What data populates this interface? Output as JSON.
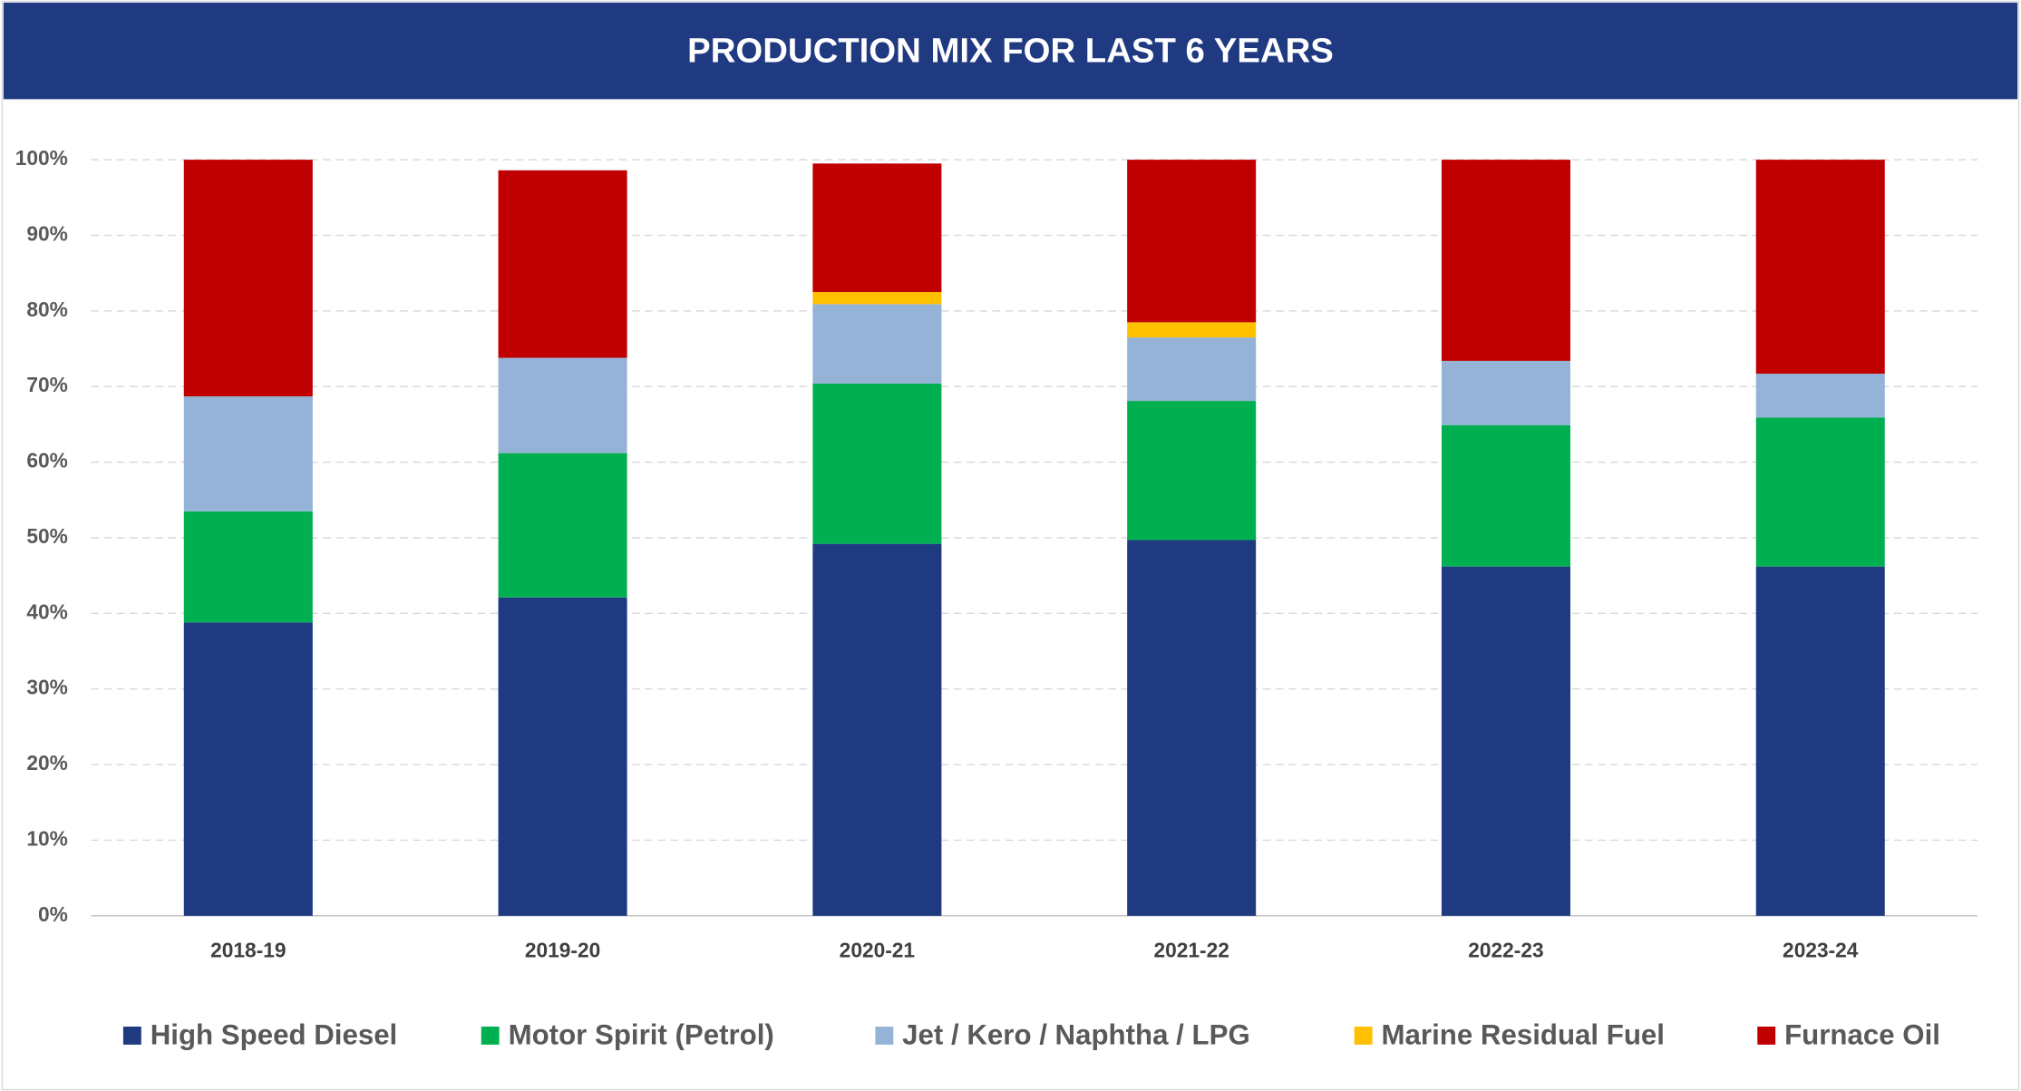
{
  "chart_data": {
    "type": "stacked_bar",
    "title": "PRODUCTION MIX FOR LAST 6 YEARS",
    "categories": [
      "2018-19",
      "2019-20",
      "2020-21",
      "2021-22",
      "2022-23",
      "2023-24"
    ],
    "series": [
      {
        "name": "High Speed Diesel",
        "color": "#203a82",
        "values": [
          38.8,
          42.1,
          49.2,
          49.7,
          46.2,
          46.2
        ]
      },
      {
        "name": "Motor Spirit (Petrol)",
        "color": "#00b050",
        "values": [
          14.7,
          19.1,
          21.2,
          18.4,
          18.7,
          19.7
        ]
      },
      {
        "name": "Jet / Kero / Naphtha / LPG",
        "color": "#95b3d7",
        "values": [
          15.2,
          12.6,
          10.5,
          8.4,
          8.5,
          5.8
        ]
      },
      {
        "name": "Marine Residual Fuel",
        "color": "#ffc000",
        "values": [
          0,
          0,
          1.6,
          2.0,
          0,
          0
        ]
      },
      {
        "name": "Furnace Oil",
        "color": "#c00000",
        "values": [
          31.3,
          24.8,
          17.0,
          21.5,
          26.6,
          28.3
        ]
      }
    ],
    "ylim": [
      0,
      100
    ],
    "yticks": [
      {
        "value": 0,
        "label": "0%"
      },
      {
        "value": 10,
        "label": "10%"
      },
      {
        "value": 20,
        "label": "20%"
      },
      {
        "value": 30,
        "label": "30%"
      },
      {
        "value": 40,
        "label": "40%"
      },
      {
        "value": 50,
        "label": "50%"
      },
      {
        "value": 60,
        "label": "60%"
      },
      {
        "value": 70,
        "label": "70%"
      },
      {
        "value": 80,
        "label": "80%"
      },
      {
        "value": 90,
        "label": "90%"
      },
      {
        "value": 100,
        "label": "100%"
      }
    ],
    "grid": true,
    "legend": "bottom"
  }
}
